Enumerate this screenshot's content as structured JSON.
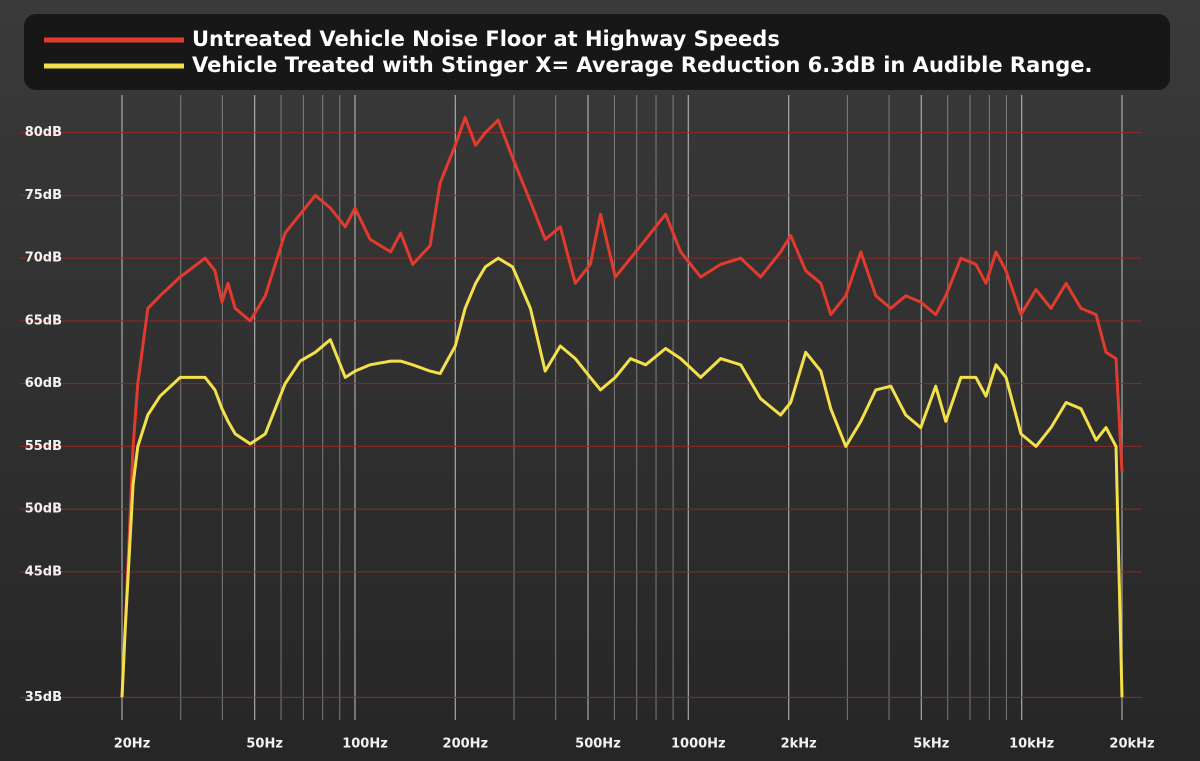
{
  "chart_data": {
    "type": "line",
    "log_x": true,
    "grid": true,
    "legend": "top",
    "x": [
      20,
      20.4,
      21.6,
      22.3,
      23.9,
      26,
      29.9,
      35.5,
      38,
      39.9,
      41.6,
      43.7,
      48.5,
      53.8,
      61.7,
      68.5,
      76,
      84.3,
      93.5,
      100,
      111,
      128,
      137,
      149,
      168,
      180,
      200,
      214,
      230,
      246,
      269,
      297,
      336,
      372,
      413,
      458,
      508,
      545,
      604,
      671,
      745,
      855,
      949,
      1089,
      1250,
      1436,
      1648,
      1892,
      2028,
      2250,
      2497,
      2676,
      2967,
      3292,
      3652,
      4050,
      4490,
      4980,
      5524,
      5920,
      6573,
      7290,
      7815,
      8374,
      8973,
      9954,
      11040,
      12250,
      13590,
      15070,
      16720,
      17910,
      19190,
      20000
    ],
    "series": [
      {
        "name": "Untreated Vehicle Noise Floor at Highway Speeds",
        "color": "#e23b2e",
        "values": [
          35,
          40,
          55,
          60,
          66,
          67,
          68.5,
          70,
          69,
          66.5,
          68,
          66,
          65,
          67,
          72,
          73.5,
          75,
          74,
          72.5,
          74,
          71.5,
          70.5,
          72,
          69.5,
          71,
          76,
          79,
          81.2,
          79,
          80,
          81,
          78,
          74.5,
          71.5,
          72.5,
          68,
          69.5,
          73.5,
          68.5,
          70,
          71.5,
          73.5,
          70.5,
          68.5,
          69.5,
          70,
          68.5,
          70.5,
          71.8,
          69,
          68,
          65.5,
          67,
          70.5,
          67,
          66,
          67,
          66.5,
          65.5,
          67,
          70,
          69.5,
          68,
          70.5,
          69,
          65.5,
          67.5,
          66,
          68,
          66,
          65.5,
          62.5,
          62,
          53
        ]
      },
      {
        "name": "Vehicle Treated with Stinger X= Average Reduction 6.3dB in Audible Range.",
        "color": "#f3e04a",
        "values": [
          35,
          40,
          52,
          55,
          57.5,
          59,
          60.5,
          60.5,
          59.5,
          58,
          57,
          56,
          55.2,
          56,
          60,
          61.8,
          62.5,
          63.5,
          60.5,
          61,
          61.5,
          61.8,
          61.8,
          61.5,
          61,
          60.8,
          63,
          66,
          68,
          69.3,
          70,
          69.3,
          66,
          61,
          63,
          62,
          60.5,
          59.5,
          60.5,
          62,
          61.5,
          62.8,
          62,
          60.5,
          62,
          61.5,
          58.8,
          57.5,
          58.5,
          62.5,
          61,
          58,
          55,
          57,
          59.5,
          59.8,
          57.5,
          56.5,
          59.8,
          57,
          60.5,
          60.5,
          59,
          61.5,
          60.5,
          56,
          55,
          56.5,
          58.5,
          58,
          55.5,
          56.5,
          55,
          35
        ]
      }
    ],
    "xlim": [
      20,
      20000
    ],
    "ylim": [
      33.2,
      83
    ],
    "xticks": [
      {
        "value": 20,
        "label": "20Hz"
      },
      {
        "value": 50,
        "label": "50Hz"
      },
      {
        "value": 100,
        "label": "100Hz"
      },
      {
        "value": 200,
        "label": "200Hz"
      },
      {
        "value": 500,
        "label": "500Hz"
      },
      {
        "value": 1000,
        "label": "1000Hz"
      },
      {
        "value": 2000,
        "label": "2kHz"
      },
      {
        "value": 5000,
        "label": "5kHz"
      },
      {
        "value": 10000,
        "label": "10kHz"
      },
      {
        "value": 20000,
        "label": "20kHz"
      }
    ],
    "xgrid_minor": [
      30,
      40,
      60,
      70,
      80,
      90,
      300,
      400,
      600,
      700,
      800,
      900,
      3000,
      4000,
      6000,
      7000,
      8000,
      9000
    ],
    "yticks": [
      {
        "value": 35,
        "label": "35dB"
      },
      {
        "value": 45,
        "label": "45dB"
      },
      {
        "value": 50,
        "label": "50dB"
      },
      {
        "value": 55,
        "label": "55dB"
      },
      {
        "value": 60,
        "label": "60dB"
      },
      {
        "value": 65,
        "label": "65dB"
      },
      {
        "value": 70,
        "label": "70dB"
      },
      {
        "value": 75,
        "label": "75dB"
      },
      {
        "value": 80,
        "label": "80dB"
      }
    ]
  }
}
